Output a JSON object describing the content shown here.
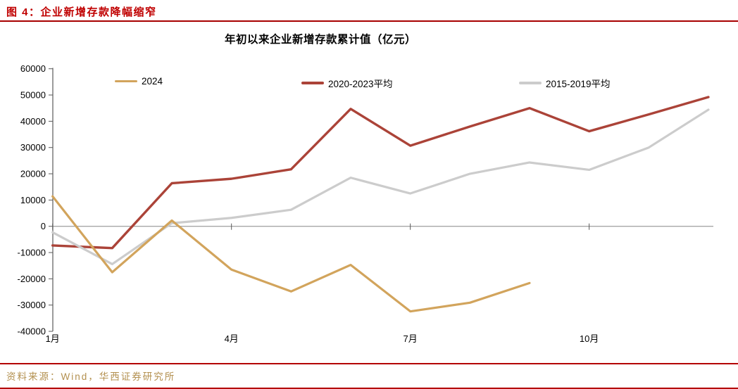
{
  "header": {
    "caption": "图 4：企业新增存款降幅缩窄"
  },
  "footer": {
    "source": "资料来源：Wind，华西证券研究所"
  },
  "colors": {
    "accent_red": "#c00000",
    "axis": "#595959",
    "zero_line": "#a6a6a6",
    "footer_text": "#b3904f"
  },
  "chart_data": {
    "type": "line",
    "title": "年初以来企业新增存款累计值（亿元）",
    "xlabel": "",
    "ylabel": "",
    "ylim": [
      -40000,
      60000
    ],
    "y_tick_step": 10000,
    "y_ticks": [
      60000,
      50000,
      40000,
      30000,
      20000,
      10000,
      0,
      -10000,
      -20000,
      -30000,
      -40000
    ],
    "x_months_total": 12,
    "x_tick_labels": [
      {
        "month": 1,
        "label": "1月"
      },
      {
        "month": 4,
        "label": "4月"
      },
      {
        "month": 7,
        "label": "7月"
      },
      {
        "month": 10,
        "label": "10月"
      }
    ],
    "grid": false,
    "zero_axis_line": true,
    "legend_position": "top-inside",
    "series": [
      {
        "name": "2024",
        "color": "#d2a45c",
        "start_month": 1,
        "values": [
          11400,
          -17500,
          2200,
          -16500,
          -24800,
          -14700,
          -32400,
          -29100,
          -21600
        ]
      },
      {
        "name": "2020-2023平均",
        "color": "#ab4338",
        "start_month": 1,
        "values": [
          -7300,
          -8300,
          16400,
          18100,
          21700,
          44700,
          30700,
          38000,
          45000,
          36200,
          42600,
          49200
        ]
      },
      {
        "name": "2015-2019平均",
        "color": "#cccccc",
        "start_month": 1,
        "values": [
          -2300,
          -14400,
          1200,
          3200,
          6300,
          18500,
          12500,
          20000,
          24300,
          21500,
          30000,
          44400
        ]
      }
    ]
  }
}
